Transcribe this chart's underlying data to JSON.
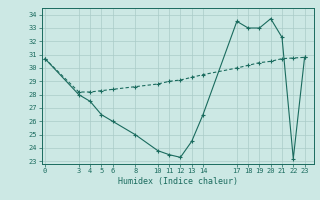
{
  "line1_x": [
    0,
    3,
    4,
    5,
    6,
    8,
    10,
    11,
    12,
    13,
    14,
    17,
    18,
    19,
    20,
    21,
    22,
    23
  ],
  "line1_y": [
    30.7,
    28.0,
    27.5,
    26.5,
    26.0,
    25.0,
    23.8,
    23.5,
    23.3,
    24.5,
    26.5,
    33.5,
    33.0,
    33.0,
    33.7,
    32.3,
    23.2,
    30.8
  ],
  "line2_x": [
    0,
    3,
    4,
    5,
    6,
    8,
    10,
    11,
    12,
    13,
    14,
    17,
    18,
    19,
    20,
    21,
    22,
    23
  ],
  "line2_y": [
    30.7,
    28.2,
    28.2,
    28.3,
    28.4,
    28.6,
    28.8,
    29.0,
    29.1,
    29.3,
    29.5,
    30.0,
    30.2,
    30.4,
    30.5,
    30.7,
    30.75,
    30.8
  ],
  "color": "#1a6b5e",
  "bg_color": "#cce8e4",
  "grid_color": "#aaccc8",
  "xticks": [
    0,
    3,
    4,
    5,
    6,
    8,
    10,
    11,
    12,
    13,
    14,
    17,
    18,
    19,
    20,
    21,
    22,
    23
  ],
  "yticks": [
    23,
    24,
    25,
    26,
    27,
    28,
    29,
    30,
    31,
    32,
    33,
    34
  ],
  "xlim": [
    -0.3,
    23.8
  ],
  "ylim": [
    22.8,
    34.5
  ],
  "xlabel": "Humidex (Indice chaleur)"
}
